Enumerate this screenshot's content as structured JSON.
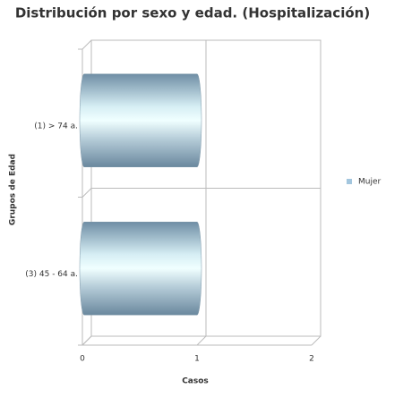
{
  "chart_data": {
    "type": "bar",
    "orientation": "horizontal",
    "title": "Distribución por sexo y edad. (Hospitalización)",
    "x_label": "Casos",
    "y_label": "Grupos de Edad",
    "categories": [
      "(1) > 74 a.",
      "(3) 45 - 64 a."
    ],
    "series": [
      {
        "name": "Mujer",
        "color": "#a3c6de",
        "values": [
          1,
          1
        ]
      }
    ],
    "xlim": [
      0,
      2
    ],
    "xticks": [
      0,
      1,
      2
    ],
    "grid": true,
    "legend": "right"
  }
}
